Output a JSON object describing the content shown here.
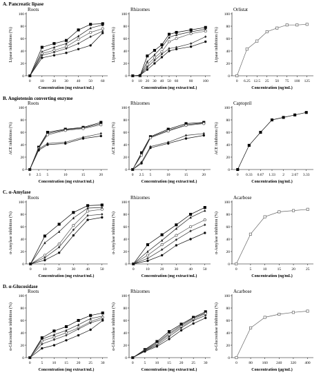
{
  "sections": [
    {
      "title": "A. Pancreatic lipase"
    },
    {
      "title": "B. Angiotensin converting enzyme"
    },
    {
      "title": "C. α-Amylase"
    },
    {
      "title": "D. α-Glucosidase"
    }
  ],
  "chart_data": [
    {
      "type": "line",
      "title": "Roots",
      "ylabel": "Lipase inhibition (%)",
      "xlabel": "Concentration (mg extract/mL)",
      "x": [
        0,
        10,
        20,
        30,
        40,
        50,
        60
      ],
      "xlim": [
        -3,
        63
      ],
      "ylim": [
        0,
        100
      ],
      "yticks": [
        0,
        20,
        40,
        60,
        80,
        100
      ],
      "series": [
        {
          "marker": "square",
          "values": [
            0,
            46,
            52,
            57,
            74,
            83,
            84
          ]
        },
        {
          "marker": "triangle",
          "values": [
            0,
            39,
            46,
            52,
            64,
            77,
            82
          ]
        },
        {
          "marker": "circle-open",
          "values": [
            0,
            36,
            41,
            47,
            59,
            70,
            76
          ]
        },
        {
          "marker": "diamond",
          "values": [
            0,
            33,
            38,
            44,
            52,
            63,
            72
          ]
        },
        {
          "marker": "circle",
          "values": [
            0,
            29,
            33,
            37,
            43,
            49,
            69
          ]
        }
      ]
    },
    {
      "type": "line",
      "title": "Rhizomes",
      "ylabel": "Lipase inhibition (%)",
      "xlabel": "Concentration (mg extract/mL)",
      "x": [
        0,
        10,
        20,
        30,
        40,
        50,
        60,
        80,
        100
      ],
      "xlim": [
        -5,
        105
      ],
      "ylim": [
        0,
        100
      ],
      "yticks": [
        0,
        20,
        40,
        60,
        80,
        100
      ],
      "series": [
        {
          "marker": "square",
          "values": [
            0,
            0,
            32,
            41,
            50,
            67,
            70,
            74,
            78
          ]
        },
        {
          "marker": "triangle",
          "values": [
            0,
            0,
            23,
            34,
            46,
            62,
            66,
            71,
            75
          ]
        },
        {
          "marker": "circle-open",
          "values": [
            0,
            0,
            18,
            29,
            39,
            55,
            60,
            68,
            72
          ]
        },
        {
          "marker": "diamond",
          "values": [
            0,
            0,
            14,
            25,
            35,
            44,
            46,
            52,
            63
          ]
        },
        {
          "marker": "circle",
          "values": [
            0,
            1,
            10,
            20,
            30,
            40,
            43,
            47,
            55
          ]
        }
      ]
    },
    {
      "type": "line",
      "title": "Orlistat",
      "ylabel": "Lipase inhibition (%)",
      "xlabel": "Concentration (ng/mL)",
      "categories": [
        "0",
        "6.25",
        "12.5",
        "25",
        "50",
        "75",
        "100",
        "125"
      ],
      "xlim": [
        -0.5,
        7.5
      ],
      "ylim": [
        0,
        100
      ],
      "yticks": [
        0,
        20,
        40,
        60,
        80,
        100
      ],
      "series": [
        {
          "marker": "square-open",
          "values": [
            0,
            43,
            56,
            71,
            77,
            82,
            82,
            83
          ]
        }
      ]
    },
    {
      "type": "line",
      "title": "Roots",
      "ylabel": "ACE inhibition (%)",
      "xlabel": "Concentration (mg extract/mL)",
      "x": [
        0,
        2.5,
        5,
        10,
        15,
        20
      ],
      "xlim": [
        -1,
        21.5
      ],
      "ylim": [
        0,
        100
      ],
      "yticks": [
        0,
        20,
        40,
        60,
        80,
        100
      ],
      "series": [
        {
          "marker": "square",
          "values": [
            0,
            36,
            60,
            65,
            68,
            76
          ]
        },
        {
          "marker": "triangle",
          "values": [
            0,
            35,
            58,
            64,
            67,
            74
          ]
        },
        {
          "marker": "circle-open",
          "values": [
            0,
            34,
            56,
            63,
            66,
            72
          ]
        },
        {
          "marker": "diamond",
          "values": [
            0,
            33,
            42,
            44,
            52,
            58
          ]
        },
        {
          "marker": "circle",
          "values": [
            0,
            31,
            40,
            42,
            50,
            54
          ]
        }
      ]
    },
    {
      "type": "line",
      "title": "Rhizomes",
      "ylabel": "ACE inhibition (%)",
      "xlabel": "Concentration (mg extract/mL)",
      "x": [
        0,
        2.5,
        5,
        10,
        15,
        20
      ],
      "xlim": [
        -1,
        21.5
      ],
      "ylim": [
        0,
        100
      ],
      "yticks": [
        0,
        20,
        40,
        60,
        80,
        100
      ],
      "series": [
        {
          "marker": "square",
          "values": [
            0,
            27,
            53,
            65,
            74,
            76
          ]
        },
        {
          "marker": "triangle",
          "values": [
            0,
            25,
            52,
            63,
            72,
            75
          ]
        },
        {
          "marker": "circle-open",
          "values": [
            0,
            23,
            51,
            62,
            71,
            74
          ]
        },
        {
          "marker": "diamond",
          "values": [
            0,
            12,
            37,
            44,
            55,
            58
          ]
        },
        {
          "marker": "circle",
          "values": [
            0,
            10,
            35,
            42,
            50,
            55
          ]
        }
      ]
    },
    {
      "type": "line",
      "title": "Captopril",
      "ylabel": "ACE inhibition (%)",
      "xlabel": "Concentration (ng/mL)",
      "categories": [
        "0",
        "0.33",
        "0.67",
        "1.33",
        "2",
        "2.67",
        "3.33"
      ],
      "xlim": [
        -0.5,
        6.5
      ],
      "ylim": [
        0,
        100
      ],
      "yticks": [
        0,
        20,
        40,
        60,
        80,
        100
      ],
      "series": [
        {
          "marker": "square",
          "values": [
            0,
            39,
            60,
            80,
            84,
            88,
            92
          ]
        }
      ]
    },
    {
      "type": "line",
      "title": "Roots",
      "ylabel": "α-Amylase inhibition (%)",
      "xlabel": "Concentration (mg extract/mL)",
      "x": [
        0,
        10,
        20,
        30,
        40,
        50
      ],
      "xlim": [
        -3,
        53
      ],
      "ylim": [
        0,
        100
      ],
      "yticks": [
        0,
        20,
        40,
        60,
        80,
        100
      ],
      "series": [
        {
          "marker": "square",
          "values": [
            0,
            45,
            64,
            83,
            94,
            95
          ]
        },
        {
          "marker": "triangle",
          "values": [
            0,
            34,
            52,
            74,
            90,
            91
          ]
        },
        {
          "marker": "circle-open",
          "values": [
            0,
            14,
            32,
            62,
            85,
            88
          ]
        },
        {
          "marker": "diamond",
          "values": [
            0,
            10,
            27,
            55,
            78,
            80
          ]
        },
        {
          "marker": "circle",
          "values": [
            0,
            6,
            18,
            46,
            71,
            75
          ]
        }
      ]
    },
    {
      "type": "line",
      "title": "Rhizomes",
      "ylabel": "α-Amylase inhibition (%)",
      "xlabel": "Concentration (mg extract/mL)",
      "x": [
        0,
        10,
        20,
        30,
        40,
        50
      ],
      "xlim": [
        -3,
        53
      ],
      "ylim": [
        0,
        100
      ],
      "yticks": [
        0,
        20,
        40,
        60,
        80,
        100
      ],
      "series": [
        {
          "marker": "square",
          "values": [
            0,
            31,
            47,
            63,
            80,
            91
          ]
        },
        {
          "marker": "triangle",
          "values": [
            0,
            20,
            38,
            57,
            75,
            86
          ]
        },
        {
          "marker": "circle-open",
          "values": [
            0,
            14,
            31,
            46,
            60,
            71
          ]
        },
        {
          "marker": "diamond",
          "values": [
            0,
            9,
            23,
            39,
            53,
            63
          ]
        },
        {
          "marker": "circle",
          "values": [
            0,
            5,
            14,
            30,
            40,
            50
          ]
        }
      ]
    },
    {
      "type": "line",
      "title": "Acarbose",
      "ylabel": "α-Amylase inhibition (%)",
      "xlabel": "Concentration (ng/mL)",
      "x": [
        0,
        5,
        10,
        15,
        20,
        25
      ],
      "xlim": [
        -1.5,
        26.5
      ],
      "ylim": [
        0,
        100
      ],
      "yticks": [
        0,
        20,
        40,
        60,
        80,
        100
      ],
      "series": [
        {
          "marker": "square-open",
          "values": [
            0,
            48,
            76,
            84,
            86,
            88
          ]
        }
      ]
    },
    {
      "type": "line",
      "title": "Roots",
      "ylabel": "α-Glucosidase inhibition (%)",
      "xlabel": "Concentration (mg extract/mL)",
      "x": [
        0,
        5,
        10,
        15,
        20,
        25,
        30
      ],
      "xlim": [
        -1.5,
        31.5
      ],
      "ylim": [
        0,
        100
      ],
      "yticks": [
        0,
        20,
        40,
        60,
        80,
        100
      ],
      "series": [
        {
          "marker": "square",
          "values": [
            0,
            32,
            43,
            50,
            60,
            68,
            72
          ]
        },
        {
          "marker": "triangle",
          "values": [
            0,
            30,
            37,
            44,
            53,
            63,
            67
          ]
        },
        {
          "marker": "circle-open",
          "values": [
            0,
            27,
            33,
            40,
            48,
            58,
            65
          ]
        },
        {
          "marker": "diamond",
          "values": [
            0,
            22,
            29,
            36,
            46,
            56,
            62
          ]
        },
        {
          "marker": "circle",
          "values": [
            0,
            15,
            20,
            28,
            36,
            45,
            60
          ]
        }
      ]
    },
    {
      "type": "line",
      "title": "Rhizomes",
      "ylabel": "α-Glucosidase inhibition (%)",
      "xlabel": "Concentration (mg extract/mL)",
      "x": [
        0,
        5,
        10,
        15,
        20,
        25,
        30
      ],
      "xlim": [
        -1.5,
        31.5
      ],
      "ylim": [
        0,
        100
      ],
      "yticks": [
        0,
        20,
        40,
        60,
        80,
        100
      ],
      "series": [
        {
          "marker": "square",
          "values": [
            0,
            13,
            26,
            42,
            54,
            65,
            74
          ]
        },
        {
          "marker": "triangle",
          "values": [
            0,
            12,
            24,
            39,
            52,
            64,
            72
          ]
        },
        {
          "marker": "circle-open",
          "values": [
            0,
            11,
            22,
            37,
            50,
            62,
            71
          ]
        },
        {
          "marker": "diamond",
          "values": [
            0,
            11,
            20,
            34,
            48,
            60,
            68
          ]
        },
        {
          "marker": "circle",
          "values": [
            0,
            10,
            18,
            30,
            44,
            55,
            64
          ]
        }
      ]
    },
    {
      "type": "line",
      "title": "Acarbose",
      "ylabel": "α-Glucosidase inhibition (%)",
      "xlabel": "Concentration (μg/mL)",
      "x": [
        0,
        80,
        160,
        240,
        320,
        400
      ],
      "xlim": [
        -25,
        425
      ],
      "ylim": [
        0,
        100
      ],
      "yticks": [
        0,
        20,
        40,
        60,
        80,
        100
      ],
      "series": [
        {
          "marker": "square-open",
          "values": [
            0,
            48,
            65,
            70,
            73,
            75
          ]
        }
      ]
    }
  ]
}
